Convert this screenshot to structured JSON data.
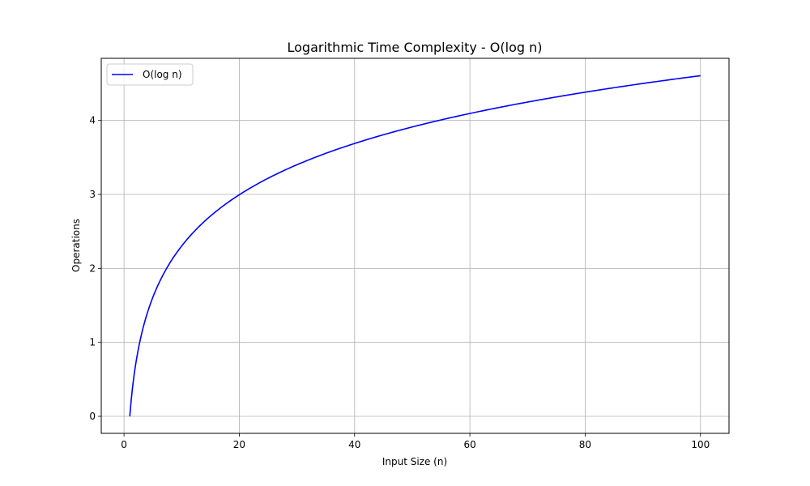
{
  "chart_data": {
    "type": "line",
    "title": "Logarithmic Time Complexity - O(log n)",
    "xlabel": "Input Size (n)",
    "ylabel": "Operations",
    "xlim": [
      -3.95,
      104.95
    ],
    "ylim": [
      -0.23,
      4.84
    ],
    "x_ticks": [
      0,
      20,
      40,
      60,
      80,
      100
    ],
    "y_ticks": [
      0,
      1,
      2,
      3,
      4
    ],
    "grid": true,
    "legend": {
      "position": "top-left"
    },
    "series": [
      {
        "name": "O(log n)",
        "color": "#0000ff",
        "function": "ln(n)",
        "x_range": [
          1,
          100
        ],
        "x": [
          1,
          2,
          3,
          4,
          5,
          6,
          7,
          8,
          10,
          12,
          15,
          20,
          25,
          30,
          40,
          50,
          60,
          70,
          80,
          90,
          100
        ],
        "values": [
          0,
          0.69,
          1.1,
          1.39,
          1.61,
          1.79,
          1.95,
          2.08,
          2.3,
          2.48,
          2.71,
          3.0,
          3.22,
          3.4,
          3.69,
          3.91,
          4.09,
          4.25,
          4.38,
          4.5,
          4.61
        ]
      }
    ]
  }
}
